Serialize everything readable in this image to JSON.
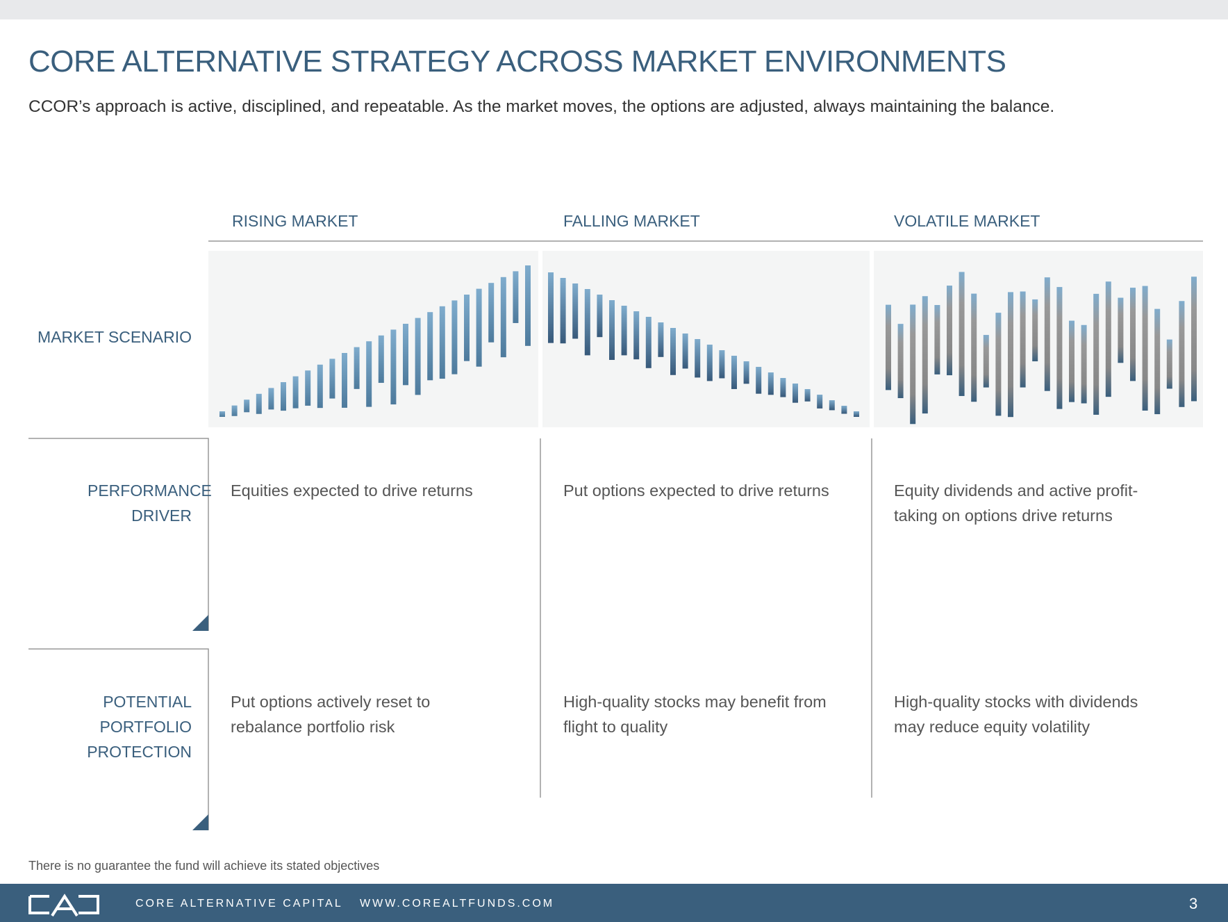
{
  "header": {
    "title": "CORE ALTERNATIVE STRATEGY ACROSS MARKET ENVIRONMENTS",
    "subtitle": "CCOR’s approach is active, disciplined, and repeatable. As the market moves, the options are adjusted, always maintaining the balance."
  },
  "table": {
    "columns": [
      "RISING MARKET",
      "FALLING MARKET",
      "VOLATILE MARKET"
    ],
    "rows": [
      {
        "label": "MARKET SCENARIO"
      },
      {
        "label": "PERFORMANCE DRIVER",
        "cells": [
          "Equities expected to drive returns",
          "Put options expected to drive returns",
          "Equity dividends and active profit-taking on options drive returns"
        ]
      },
      {
        "label": "POTENTIAL PORTFOLIO PROTECTION",
        "cells": [
          "Put options actively reset to rebalance portfolio risk",
          "High-quality stocks may benefit from flight to quality",
          "High-quality stocks with dividends may reduce equity volatility"
        ]
      }
    ]
  },
  "disclaimer": "There is no guarantee the fund will achieve its stated objectives",
  "footer": {
    "company": "CORE ALTERNATIVE CAPITAL",
    "website": "WWW.COREALTFUNDS.COM",
    "page": "3"
  }
}
